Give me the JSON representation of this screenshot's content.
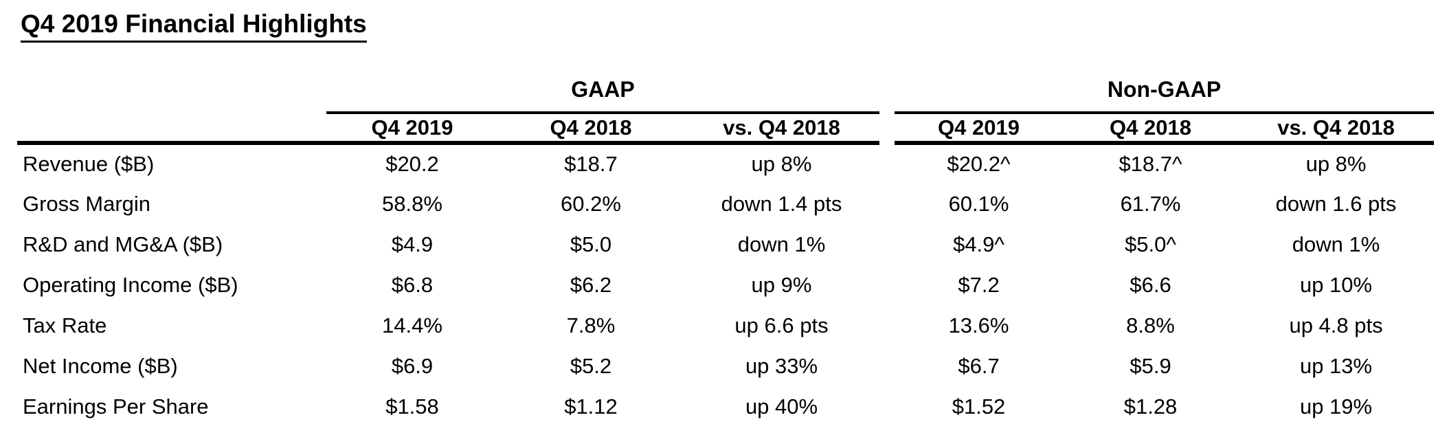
{
  "title": "Q4 2019 Financial Highlights",
  "table": {
    "groups": [
      {
        "label": "GAAP"
      },
      {
        "label": "Non-GAAP"
      }
    ],
    "subheaders": [
      "Q4 2019",
      "Q4 2018",
      "vs. Q4 2018"
    ],
    "rows": [
      {
        "label": "Revenue ($B)",
        "gaap": [
          "$20.2",
          "$18.7",
          "up 8%"
        ],
        "non_gaap": [
          "$20.2^",
          "$18.7^",
          "up 8%"
        ]
      },
      {
        "label": "Gross Margin",
        "gaap": [
          "58.8%",
          "60.2%",
          "down 1.4 pts"
        ],
        "non_gaap": [
          "60.1%",
          "61.7%",
          "down 1.6 pts"
        ]
      },
      {
        "label": "R&D and MG&A ($B)",
        "gaap": [
          "$4.9",
          "$5.0",
          "down 1%"
        ],
        "non_gaap": [
          "$4.9^",
          "$5.0^",
          "down 1%"
        ]
      },
      {
        "label": "Operating Income ($B)",
        "gaap": [
          "$6.8",
          "$6.2",
          "up 9%"
        ],
        "non_gaap": [
          "$7.2",
          "$6.6",
          "up 10%"
        ]
      },
      {
        "label": "Tax Rate",
        "gaap": [
          "14.4%",
          "7.8%",
          "up 6.6 pts"
        ],
        "non_gaap": [
          "13.6%",
          "8.8%",
          "up 4.8 pts"
        ]
      },
      {
        "label": "Net Income ($B)",
        "gaap": [
          "$6.9",
          "$5.2",
          "up 33%"
        ],
        "non_gaap": [
          "$6.7",
          "$5.9",
          "up 13%"
        ]
      },
      {
        "label": "Earnings Per Share",
        "gaap": [
          "$1.58",
          "$1.12",
          "up 40%"
        ],
        "non_gaap": [
          "$1.52",
          "$1.28",
          "up 19%"
        ]
      }
    ]
  },
  "colors": {
    "background": "#ffffff",
    "text": "#000000",
    "rule": "#000000"
  }
}
